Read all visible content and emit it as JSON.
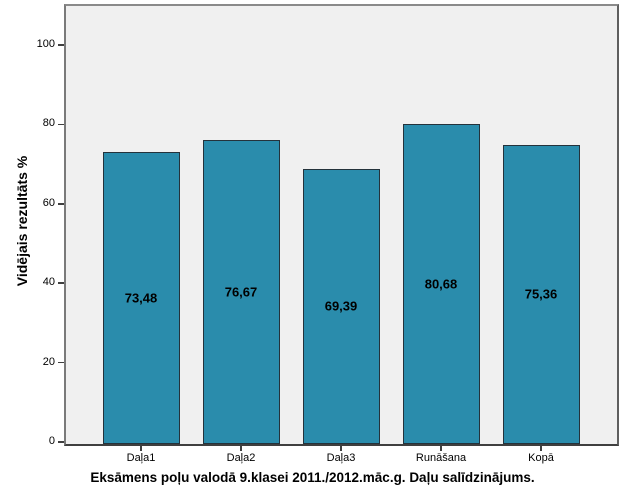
{
  "chart_data": {
    "type": "bar",
    "title": "Eksāmens poļu valodā 9.klasei 2011./2012.māc.g. Daļu salīdzinājums.",
    "ylabel": "Vidējais rezultāts %",
    "xlabel": "",
    "categories": [
      "Daļa1",
      "Daļa2",
      "Daļa3",
      "Runāšana",
      "Kopā"
    ],
    "values": [
      73.48,
      76.67,
      69.39,
      80.68,
      75.36
    ],
    "value_labels": [
      "73,48",
      "76,67",
      "69,39",
      "80,68",
      "75,36"
    ],
    "yticks": [
      0,
      20,
      40,
      60,
      80,
      100
    ],
    "ylim": [
      0,
      110
    ],
    "grid": false,
    "legend": null,
    "value_label_position": "center-of-bar"
  },
  "colors": {
    "bar_fill": "#2A8CAC",
    "bar_border": "#24323B",
    "plot_bg": "#F0F0F0",
    "frame_top": "#8A8A8A",
    "frame_left": "#7A7A7A",
    "frame_right": "#5F5F5F",
    "axis_line": "#3F3F3F",
    "tick_color": "#3F3F3F",
    "text": "#000000",
    "page_bg": "#FFFFFF"
  }
}
